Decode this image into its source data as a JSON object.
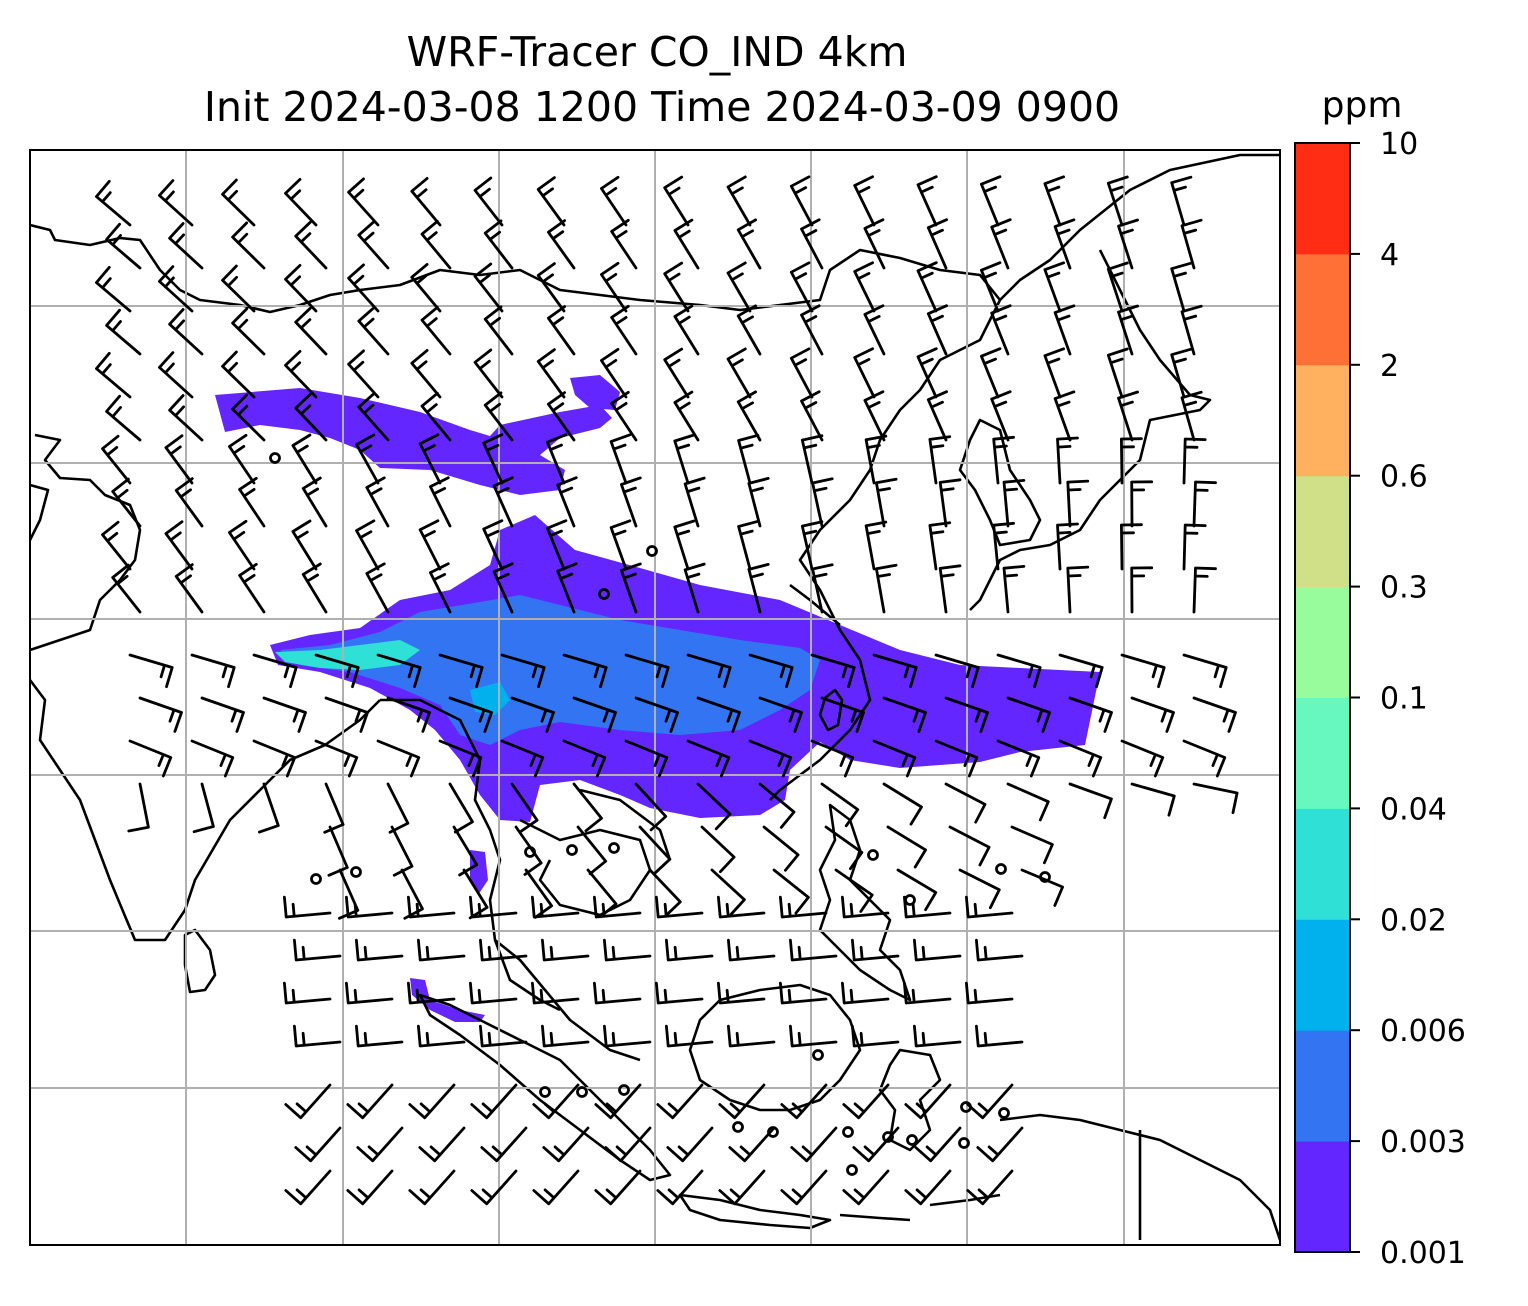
{
  "figure": {
    "title_line1": "WRF-Tracer CO_IND 4km",
    "title_line2": "Init 2024-03-08 1200 Time 2024-03-09 0900"
  },
  "colorbar": {
    "unit": "ppm",
    "levels": [
      "0.001",
      "0.003",
      "0.006",
      "0.02",
      "0.04",
      "0.1",
      "0.3",
      "0.6",
      "2",
      "4",
      "10"
    ],
    "colors": [
      "#6326ff",
      "#3374f3",
      "#00b1ed",
      "#2fe0d6",
      "#66f8be",
      "#98fc9d",
      "#d0e089",
      "#ffb160",
      "#ff7036",
      "#ff2d14"
    ]
  },
  "map": {
    "background": "#ffffff",
    "gridline_color": "#b0b0b0",
    "coastline_color": "#000000",
    "barb_color": "#000000",
    "plume_colors": {
      "low": "#6326ff",
      "mid": "#3374f3",
      "high": "#2fe0d6"
    }
  }
}
